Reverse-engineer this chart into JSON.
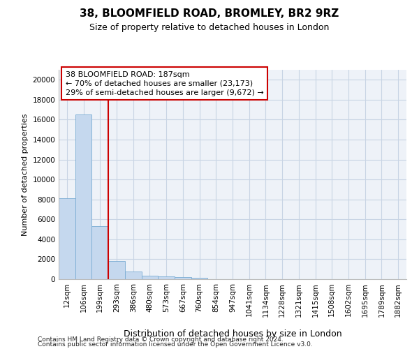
{
  "title": "38, BLOOMFIELD ROAD, BROMLEY, BR2 9RZ",
  "subtitle": "Size of property relative to detached houses in London",
  "xlabel": "Distribution of detached houses by size in London",
  "ylabel": "Number of detached properties",
  "categories": [
    "12sqm",
    "106sqm",
    "199sqm",
    "293sqm",
    "386sqm",
    "480sqm",
    "573sqm",
    "667sqm",
    "760sqm",
    "854sqm",
    "947sqm",
    "1041sqm",
    "1134sqm",
    "1228sqm",
    "1321sqm",
    "1415sqm",
    "1508sqm",
    "1602sqm",
    "1695sqm",
    "1789sqm",
    "1882sqm"
  ],
  "values": [
    8100,
    16500,
    5300,
    1850,
    800,
    350,
    280,
    200,
    150,
    0,
    0,
    0,
    0,
    0,
    0,
    0,
    0,
    0,
    0,
    0,
    0
  ],
  "bar_color": "#c5d8ee",
  "bar_edge_color": "#7aacd4",
  "grid_color": "#c8d4e4",
  "bg_color": "#eef2f8",
  "vline_color": "#cc0000",
  "vline_pos": 2.5,
  "ann_line1": "38 BLOOMFIELD ROAD: 187sqm",
  "ann_line2": "← 70% of detached houses are smaller (23,173)",
  "ann_line3": "29% of semi-detached houses are larger (9,672) →",
  "ann_box_edgecolor": "#cc0000",
  "footer_line1": "Contains HM Land Registry data © Crown copyright and database right 2024.",
  "footer_line2": "Contains public sector information licensed under the Open Government Licence v3.0.",
  "ylim_max": 21000,
  "yticks": [
    0,
    2000,
    4000,
    6000,
    8000,
    10000,
    12000,
    14000,
    16000,
    18000,
    20000
  ],
  "title_fontsize": 11,
  "subtitle_fontsize": 9,
  "ylabel_fontsize": 8,
  "xlabel_fontsize": 9,
  "tick_fontsize": 7.5,
  "ann_fontsize": 8.0,
  "footer_fontsize": 6.5
}
